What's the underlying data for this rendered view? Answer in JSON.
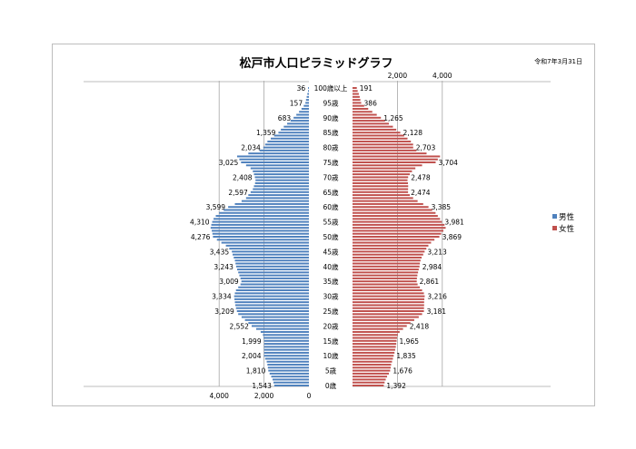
{
  "chart_data": {
    "type": "bar",
    "title": "松戸市人口ピラミッドグラフ",
    "date_label": "令和7年3月31日",
    "age_labels": [
      "100歳以上",
      "95歳",
      "90歳",
      "85歳",
      "80歳",
      "75歳",
      "70歳",
      "65歳",
      "60歳",
      "55歳",
      "50歳",
      "45歳",
      "40歳",
      "35歳",
      "30歳",
      "25歳",
      "20歳",
      "15歳",
      "10歳",
      "5歳",
      "0歳"
    ],
    "ages": [
      100,
      99,
      98,
      97,
      96,
      95,
      94,
      93,
      92,
      91,
      90,
      89,
      88,
      87,
      86,
      85,
      84,
      83,
      82,
      81,
      80,
      79,
      78,
      77,
      76,
      75,
      74,
      73,
      72,
      71,
      70,
      69,
      68,
      67,
      66,
      65,
      64,
      63,
      62,
      61,
      60,
      59,
      58,
      57,
      56,
      55,
      54,
      53,
      52,
      51,
      50,
      49,
      48,
      47,
      46,
      45,
      44,
      43,
      42,
      41,
      40,
      39,
      38,
      37,
      36,
      35,
      34,
      33,
      32,
      31,
      30,
      29,
      28,
      27,
      26,
      25,
      24,
      23,
      22,
      21,
      20,
      19,
      18,
      17,
      16,
      15,
      14,
      13,
      12,
      11,
      10,
      9,
      8,
      7,
      6,
      5,
      4,
      3,
      2,
      1,
      0
    ],
    "series": [
      {
        "name": "男性",
        "color": "#4f81bd",
        "values": [
          36,
          40,
          70,
          100,
          130,
          157,
          230,
          330,
          440,
          560,
          683,
          820,
          970,
          1120,
          1250,
          1359,
          1550,
          1700,
          1850,
          1950,
          2034,
          2200,
          2700,
          3200,
          3100,
          3025,
          2800,
          2600,
          2500,
          2450,
          2408,
          2380,
          2400,
          2450,
          2500,
          2597,
          2700,
          2800,
          3000,
          3300,
          3599,
          3800,
          4000,
          4150,
          4250,
          4310,
          4350,
          4380,
          4330,
          4300,
          4276,
          4100,
          3900,
          3700,
          3550,
          3435,
          3400,
          3350,
          3300,
          3270,
          3243,
          3200,
          3150,
          3100,
          3050,
          3009,
          3050,
          3150,
          3250,
          3300,
          3334,
          3320,
          3300,
          3280,
          3250,
          3209,
          3150,
          3000,
          2850,
          2700,
          2552,
          2350,
          2150,
          2050,
          2020,
          1999,
          2000,
          2005,
          2003,
          2000,
          2004,
          1950,
          1880,
          1850,
          1830,
          1810,
          1750,
          1680,
          1620,
          1580,
          1543
        ]
      },
      {
        "name": "女性",
        "color": "#c0504d",
        "values": [
          191,
          230,
          280,
          320,
          350,
          386,
          520,
          700,
          880,
          1080,
          1265,
          1450,
          1620,
          1800,
          1950,
          2128,
          2300,
          2450,
          2600,
          2700,
          2703,
          2850,
          3300,
          3900,
          3800,
          3704,
          3100,
          2800,
          2650,
          2550,
          2478,
          2450,
          2470,
          2480,
          2475,
          2474,
          2550,
          2700,
          2900,
          3150,
          3385,
          3550,
          3700,
          3800,
          3900,
          3981,
          4100,
          4150,
          4050,
          3950,
          3869,
          3650,
          3500,
          3380,
          3290,
          3213,
          3150,
          3080,
          3030,
          3000,
          2984,
          2950,
          2920,
          2890,
          2870,
          2861,
          2900,
          3000,
          3100,
          3180,
          3216,
          3200,
          3190,
          3190,
          3185,
          3181,
          3100,
          2950,
          2750,
          2580,
          2418,
          2250,
          2100,
          2020,
          1985,
          1965,
          1950,
          1930,
          1900,
          1870,
          1835,
          1800,
          1760,
          1720,
          1700,
          1676,
          1620,
          1540,
          1480,
          1430,
          1392
        ]
      }
    ],
    "label_values": {
      "男性": [
        "36",
        "157",
        "683",
        "1,359",
        "2,034",
        "3,025",
        "2,408",
        "2,597",
        "3,599",
        "4,310",
        "4,276",
        "3,435",
        "3,243",
        "3,009",
        "3,334",
        "3,209",
        "2,552",
        "1,999",
        "2,004",
        "1,810",
        "1,543"
      ],
      "女性": [
        "191",
        "386",
        "1,265",
        "2,128",
        "2,703",
        "3,704",
        "2,478",
        "2,474",
        "3,385",
        "3,981",
        "3,869",
        "3,213",
        "2,984",
        "2,861",
        "3,216",
        "3,181",
        "2,418",
        "1,965",
        "1,835",
        "1,676",
        "1,392"
      ]
    },
    "male_axis_ticks": [
      "4,000",
      "2,000",
      "0"
    ],
    "female_axis_ticks": [
      "2,000",
      "4,000"
    ],
    "xlim": [
      0,
      5000
    ],
    "legend_position": "right",
    "grid": true
  }
}
